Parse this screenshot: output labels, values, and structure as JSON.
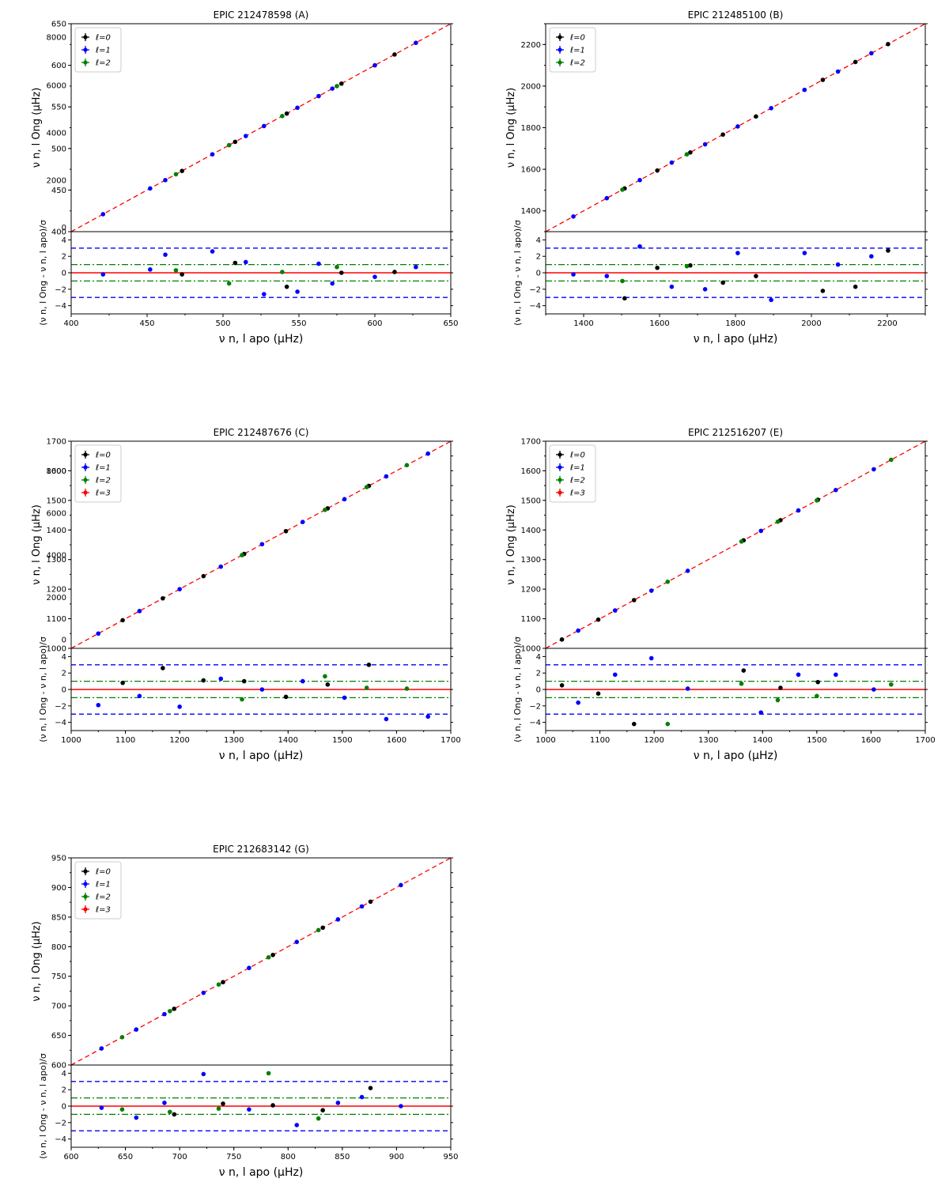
{
  "chart_data": [
    {
      "type": "scatter",
      "title": "EPIC 212478598 (A)",
      "xlabel": "ν n, l apo (μHz)",
      "ylabel": "ν n, l Ong (μHz)",
      "rlabel": "(ν n, l Ong - ν n, l apo)/σ",
      "xlim": [
        400,
        650
      ],
      "ylim": [
        400,
        650
      ],
      "xticks": [
        "400",
        "450",
        "500",
        "550",
        "600",
        "650"
      ],
      "yticks": [
        "400",
        "450",
        "500",
        "550",
        "600",
        "650"
      ],
      "overlay_yticks": [
        {
          "value": 405,
          "label": "0"
        },
        {
          "value": 462,
          "label": "2000"
        },
        {
          "value": 519,
          "label": "4000"
        },
        {
          "value": 576,
          "label": "6000"
        },
        {
          "value": 634,
          "label": "8000"
        }
      ],
      "rlim": [
        -5,
        5
      ],
      "rticks": [
        "4",
        "2",
        "0",
        "−2",
        "−4"
      ],
      "legend": [
        "ℓ=0",
        "ℓ=1",
        "ℓ=2"
      ],
      "series": [
        {
          "name": "ℓ=0",
          "color": "#000000",
          "points": [
            [
              473,
              473,
              -0.2
            ],
            [
              508,
              508,
              1.2
            ],
            [
              542,
              542,
              -1.7
            ],
            [
              578,
              578,
              0.0
            ],
            [
              613,
              613,
              0.1
            ]
          ]
        },
        {
          "name": "ℓ=1",
          "color": "#0000ff",
          "points": [
            [
              421,
              421,
              -0.2
            ],
            [
              452,
              452,
              0.4
            ],
            [
              462,
              462,
              2.2
            ],
            [
              493,
              493,
              2.6
            ],
            [
              515,
              515,
              1.3
            ],
            [
              527,
              527,
              -2.6
            ],
            [
              549,
              549,
              -2.3
            ],
            [
              563,
              563,
              1.1
            ],
            [
              572,
              572,
              -1.3
            ],
            [
              600,
              600,
              -0.5
            ],
            [
              627,
              627,
              0.7
            ]
          ]
        },
        {
          "name": "ℓ=2",
          "color": "#008000",
          "points": [
            [
              469,
              469,
              0.3
            ],
            [
              504,
              504,
              -1.3
            ],
            [
              539,
              539,
              0.1
            ],
            [
              575,
              575,
              0.7
            ]
          ]
        }
      ]
    },
    {
      "type": "scatter",
      "title": "EPIC 212485100 (B)",
      "xlabel": "ν n, l apo (μHz)",
      "ylabel": "ν n, l Ong (μHz)",
      "rlabel": "(ν n, l Ong - ν n, l apo)/σ",
      "xlim": [
        1300,
        2300
      ],
      "ylim": [
        1300,
        2300
      ],
      "xticks": [
        "1400",
        "1600",
        "1800",
        "2000",
        "2200"
      ],
      "yticks": [
        "1400",
        "1600",
        "1800",
        "2000",
        "2200"
      ],
      "rlim": [
        -5,
        5
      ],
      "rticks": [
        "4",
        "2",
        "0",
        "−2",
        "−4"
      ],
      "legend": [
        "ℓ=0",
        "ℓ=1",
        "ℓ=2"
      ],
      "series": [
        {
          "name": "ℓ=0",
          "color": "#000000",
          "points": [
            [
              1508,
              1508,
              -3.1
            ],
            [
              1594,
              1594,
              0.6
            ],
            [
              1681,
              1681,
              0.9
            ],
            [
              1767,
              1767,
              -1.2
            ],
            [
              1854,
              1854,
              -0.4
            ],
            [
              2030,
              2030,
              -2.2
            ],
            [
              2116,
              2116,
              -1.7
            ],
            [
              2202,
              2202,
              2.7
            ]
          ]
        },
        {
          "name": "ℓ=1",
          "color": "#0000ff",
          "points": [
            [
              1373,
              1373,
              -0.2
            ],
            [
              1461,
              1461,
              -0.4
            ],
            [
              1548,
              1548,
              3.2
            ],
            [
              1632,
              1632,
              -1.7
            ],
            [
              1720,
              1720,
              -2.0
            ],
            [
              1806,
              1806,
              2.4
            ],
            [
              1894,
              1894,
              -3.3
            ],
            [
              1982,
              1982,
              2.4
            ],
            [
              2070,
              2070,
              1.0
            ],
            [
              2158,
              2158,
              2.0
            ]
          ]
        },
        {
          "name": "ℓ=2",
          "color": "#008000",
          "points": [
            [
              1502,
              1502,
              -1.0
            ],
            [
              1672,
              1672,
              0.8
            ]
          ]
        }
      ]
    },
    {
      "type": "scatter",
      "title": "EPIC 212487676 (C)",
      "xlabel": "ν n, l apo (μHz)",
      "ylabel": "ν n, l Ong (μHz)",
      "rlabel": "(ν n, l Ong - ν n, l apo)/σ",
      "xlim": [
        1000,
        1700
      ],
      "ylim": [
        1000,
        1700
      ],
      "xticks": [
        "1000",
        "1100",
        "1200",
        "1300",
        "1400",
        "1500",
        "1600",
        "1700"
      ],
      "yticks": [
        "1000",
        "1100",
        "1200",
        "1300",
        "1400",
        "1500",
        "1600",
        "1700"
      ],
      "overlay_yticks": [
        {
          "value": 1030,
          "label": "0"
        },
        {
          "value": 1172,
          "label": "2000"
        },
        {
          "value": 1315,
          "label": "4000"
        },
        {
          "value": 1457,
          "label": "6000"
        },
        {
          "value": 1600,
          "label": "8000"
        }
      ],
      "rlim": [
        -5,
        5
      ],
      "rticks": [
        "4",
        "2",
        "0",
        "−2",
        "−4"
      ],
      "legend": [
        "ℓ=0",
        "ℓ=1",
        "ℓ=2",
        "ℓ=3"
      ],
      "series": [
        {
          "name": "ℓ=0",
          "color": "#000000",
          "points": [
            [
              1095,
              1095,
              0.8
            ],
            [
              1169,
              1169,
              2.6
            ],
            [
              1244,
              1244,
              1.1
            ],
            [
              1319,
              1319,
              1.0
            ],
            [
              1396,
              1396,
              -0.9
            ],
            [
              1473,
              1473,
              0.6
            ],
            [
              1549,
              1549,
              3.0
            ]
          ]
        },
        {
          "name": "ℓ=1",
          "color": "#0000ff",
          "points": [
            [
              1050,
              1050,
              -1.9
            ],
            [
              1126,
              1126,
              -0.8
            ],
            [
              1200,
              1200,
              -2.1
            ],
            [
              1276,
              1276,
              1.3
            ],
            [
              1352,
              1352,
              0.0
            ],
            [
              1427,
              1427,
              1.0
            ],
            [
              1504,
              1504,
              -1.0
            ],
            [
              1581,
              1581,
              -3.6
            ],
            [
              1658,
              1658,
              -3.3
            ]
          ]
        },
        {
          "name": "ℓ=2",
          "color": "#008000",
          "points": [
            [
              1315,
              1315,
              -1.2
            ],
            [
              1468,
              1468,
              1.6
            ],
            [
              1545,
              1545,
              0.2
            ],
            [
              1619,
              1619,
              0.1
            ]
          ]
        },
        {
          "name": "ℓ=3",
          "color": "#ff0000",
          "points": []
        }
      ]
    },
    {
      "type": "scatter",
      "title": "EPIC 212516207 (E)",
      "xlabel": "ν n, l apo (μHz)",
      "ylabel": "ν n, l Ong (μHz)",
      "rlabel": "(ν n, l Ong - ν n, l apo)/σ",
      "xlim": [
        1000,
        1700
      ],
      "ylim": [
        1000,
        1700
      ],
      "xticks": [
        "1000",
        "1100",
        "1200",
        "1300",
        "1400",
        "1500",
        "1600",
        "1700"
      ],
      "yticks": [
        "1000",
        "1100",
        "1200",
        "1300",
        "1400",
        "1500",
        "1600",
        "1700"
      ],
      "rlim": [
        -5,
        5
      ],
      "rticks": [
        "4",
        "2",
        "0",
        "−2",
        "−4"
      ],
      "legend": [
        "ℓ=0",
        "ℓ=1",
        "ℓ=2",
        "ℓ=3"
      ],
      "series": [
        {
          "name": "ℓ=0",
          "color": "#000000",
          "points": [
            [
              1030,
              1030,
              0.5
            ],
            [
              1097,
              1097,
              -0.5
            ],
            [
              1163,
              1163,
              -4.2
            ],
            [
              1365,
              1365,
              2.3
            ],
            [
              1433,
              1433,
              0.2
            ],
            [
              1502,
              1502,
              0.9
            ]
          ]
        },
        {
          "name": "ℓ=1",
          "color": "#0000ff",
          "points": [
            [
              1060,
              1060,
              -1.6
            ],
            [
              1128,
              1128,
              1.8
            ],
            [
              1195,
              1195,
              3.8
            ],
            [
              1262,
              1262,
              0.1
            ],
            [
              1397,
              1397,
              -2.8
            ],
            [
              1466,
              1466,
              1.8
            ],
            [
              1535,
              1535,
              1.8
            ],
            [
              1605,
              1605,
              0.0
            ]
          ]
        },
        {
          "name": "ℓ=2",
          "color": "#008000",
          "points": [
            [
              1225,
              1225,
              -4.2
            ],
            [
              1361,
              1361,
              0.7
            ],
            [
              1428,
              1428,
              -1.3
            ],
            [
              1500,
              1500,
              -0.8
            ],
            [
              1637,
              1637,
              0.6
            ]
          ]
        },
        {
          "name": "ℓ=3",
          "color": "#ff0000",
          "points": []
        }
      ]
    },
    {
      "type": "scatter",
      "title": "EPIC 212683142 (G)",
      "xlabel": "ν n, l apo (μHz)",
      "ylabel": "ν n, l Ong (μHz)",
      "rlabel": "(ν n, l Ong - ν n, l apo)/σ",
      "xlim": [
        600,
        950
      ],
      "ylim": [
        600,
        950
      ],
      "xticks": [
        "600",
        "650",
        "700",
        "750",
        "800",
        "850",
        "900",
        "950"
      ],
      "yticks": [
        "600",
        "650",
        "700",
        "750",
        "800",
        "850",
        "900",
        "950"
      ],
      "rlim": [
        -5,
        5
      ],
      "rticks": [
        "4",
        "2",
        "0",
        "−2",
        "−4"
      ],
      "legend": [
        "ℓ=0",
        "ℓ=1",
        "ℓ=2",
        "ℓ=3"
      ],
      "series": [
        {
          "name": "ℓ=0",
          "color": "#000000",
          "points": [
            [
              695,
              695,
              -1.0
            ],
            [
              740,
              740,
              0.3
            ],
            [
              786,
              786,
              0.1
            ],
            [
              832,
              832,
              -0.5
            ],
            [
              876,
              876,
              2.2
            ]
          ]
        },
        {
          "name": "ℓ=1",
          "color": "#0000ff",
          "points": [
            [
              628,
              628,
              -0.2
            ],
            [
              660,
              660,
              -1.4
            ],
            [
              686,
              686,
              0.4
            ],
            [
              722,
              722,
              3.9
            ],
            [
              764,
              764,
              -0.4
            ],
            [
              808,
              808,
              -2.3
            ],
            [
              846,
              846,
              0.4
            ],
            [
              868,
              868,
              1.1
            ],
            [
              904,
              904,
              0.0
            ]
          ]
        },
        {
          "name": "ℓ=2",
          "color": "#008000",
          "points": [
            [
              647,
              647,
              -0.4
            ],
            [
              691,
              691,
              -0.7
            ],
            [
              736,
              736,
              -0.3
            ],
            [
              782,
              782,
              4.0
            ],
            [
              828,
              828,
              -1.5
            ]
          ]
        },
        {
          "name": "ℓ=3",
          "color": "#ff0000",
          "points": []
        }
      ]
    }
  ]
}
